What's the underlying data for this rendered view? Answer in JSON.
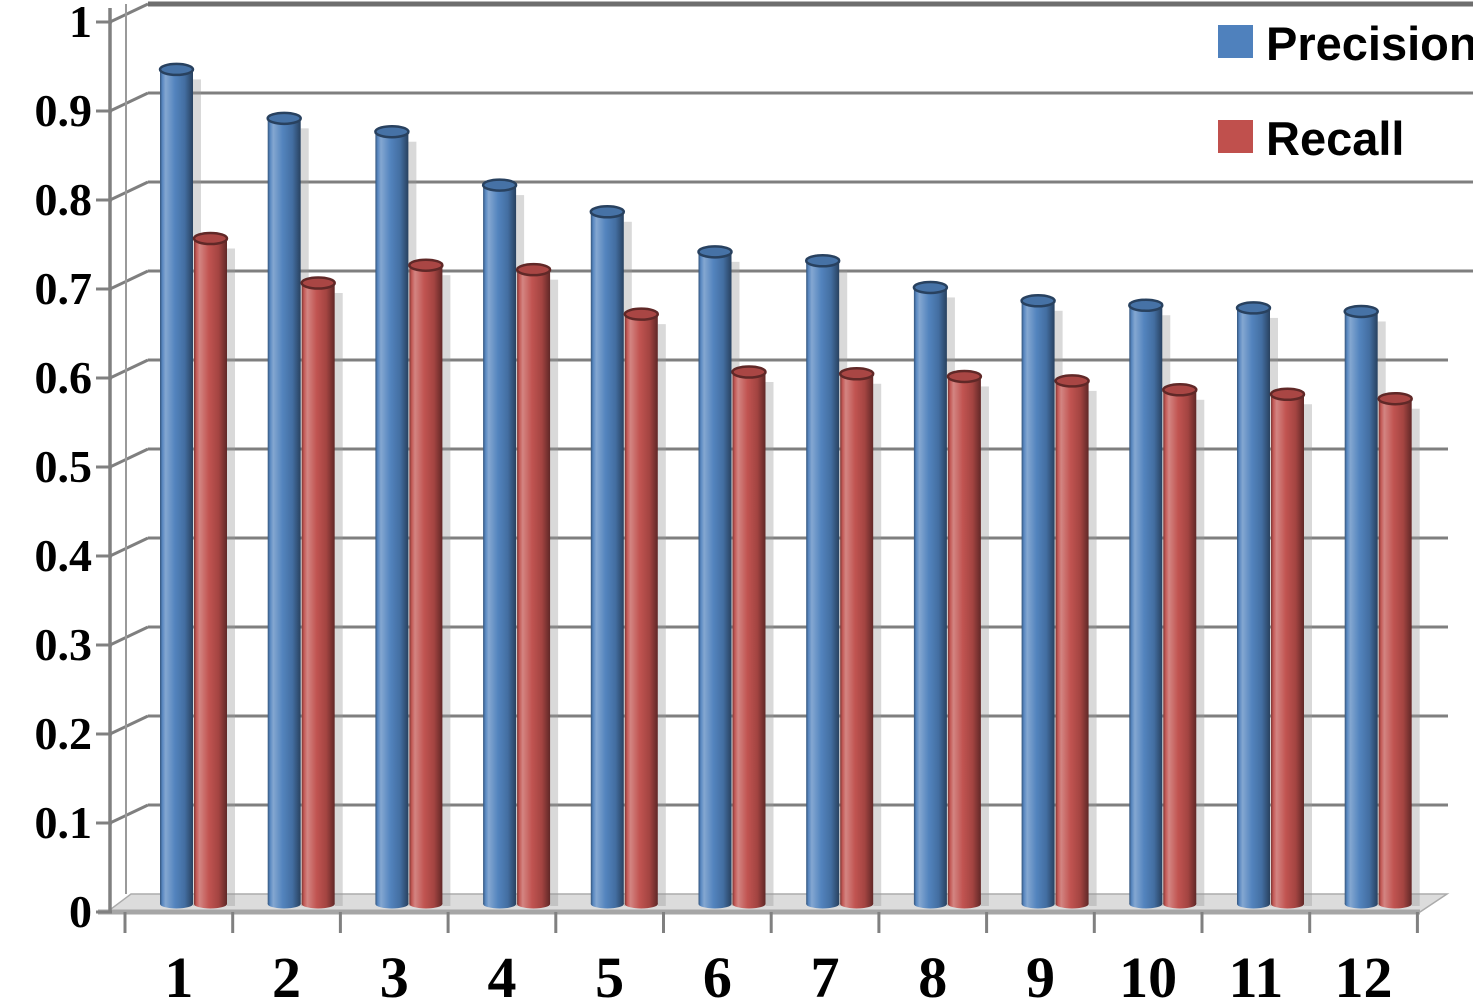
{
  "chart_data": {
    "type": "bar",
    "style": "3d-cylinder-excel",
    "title": "",
    "xlabel": "",
    "ylabel": "",
    "categories": [
      "1",
      "2",
      "3",
      "4",
      "5",
      "6",
      "7",
      "8",
      "9",
      "10",
      "11",
      "12"
    ],
    "series": [
      {
        "name": "Precision",
        "color": "#4F81BD",
        "values": [
          0.94,
          0.885,
          0.87,
          0.81,
          0.78,
          0.735,
          0.725,
          0.695,
          0.68,
          0.675,
          0.672,
          0.668
        ]
      },
      {
        "name": "Recall",
        "color": "#C0504D",
        "values": [
          0.75,
          0.7,
          0.72,
          0.715,
          0.665,
          0.6,
          0.598,
          0.595,
          0.59,
          0.58,
          0.575,
          0.57
        ]
      }
    ],
    "ylim": [
      0,
      1
    ],
    "ytick_step": 0.1,
    "ytick_labels": [
      "0",
      "0.1",
      "0.2",
      "0.3",
      "0.4",
      "0.5",
      "0.6",
      "0.7",
      "0.8",
      "0.9",
      "1"
    ],
    "grid": true,
    "gridline_color": "#7F7F7F",
    "axis_color": "#808080",
    "floor_color": "#DCDCDC",
    "background_color": "#FFFFFF",
    "text_color": "#000000",
    "legend_position": "top-right"
  }
}
